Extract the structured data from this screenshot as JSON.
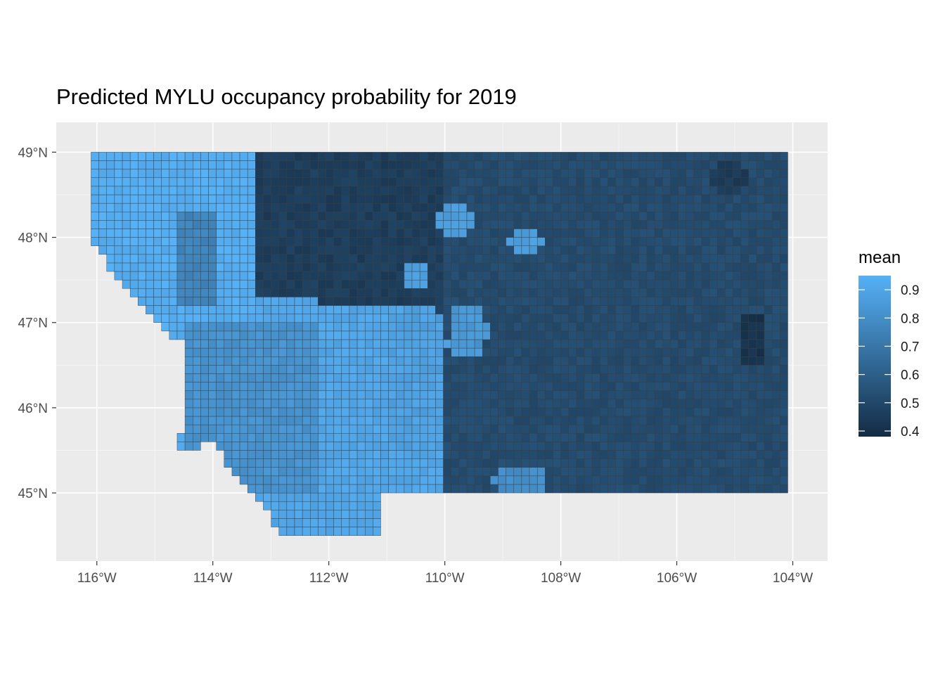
{
  "title": "Predicted MYLU occupancy probability for 2019",
  "chart_data": {
    "type": "heatmap",
    "title": "Predicted MYLU occupancy probability for 2019",
    "xlabel": "",
    "ylabel": "",
    "x_ticks": [
      -116,
      -114,
      -112,
      -110,
      -108,
      -106,
      -104
    ],
    "x_tick_labels": [
      "116°W",
      "114°W",
      "112°W",
      "110°W",
      "108°W",
      "106°W",
      "104°W"
    ],
    "y_ticks": [
      49,
      48,
      47,
      46,
      45
    ],
    "y_tick_labels": [
      "49°N",
      "48°N",
      "47°N",
      "46°N",
      "45°N"
    ],
    "xlim": [
      -116.7,
      -103.4
    ],
    "ylim": [
      44.2,
      49.35
    ],
    "grid": true,
    "legend": {
      "title": "mean",
      "position": "right",
      "range": [
        0.38,
        0.95
      ],
      "ticks": [
        0.9,
        0.8,
        0.7,
        0.6,
        0.5,
        0.4
      ],
      "tick_labels": [
        "0.9",
        "0.8",
        "0.7",
        "0.6",
        "0.5",
        "0.4"
      ],
      "color_low": "#132B43",
      "color_high": "#56B1F7"
    },
    "region_means": [
      {
        "region": "west of 113.2°W",
        "mean": 0.93
      },
      {
        "region": "112.2°W–114.5°W, 45°N–47°N",
        "mean": 0.82
      },
      {
        "region": "110°W–113.2°W, north of 47.3°N",
        "mean": 0.46
      },
      {
        "region": "104°W–110°W",
        "mean": 0.52
      },
      {
        "region": "around 104.7°W, 46.8°N",
        "mean": 0.42
      },
      {
        "region": "around 110.5°W, 46.8°N",
        "mean": 0.88
      },
      {
        "region": "around 109.8°W, 48.2°N",
        "mean": 0.86
      },
      {
        "region": "around 108.7°W, 45.1°N",
        "mean": 0.8
      }
    ]
  }
}
